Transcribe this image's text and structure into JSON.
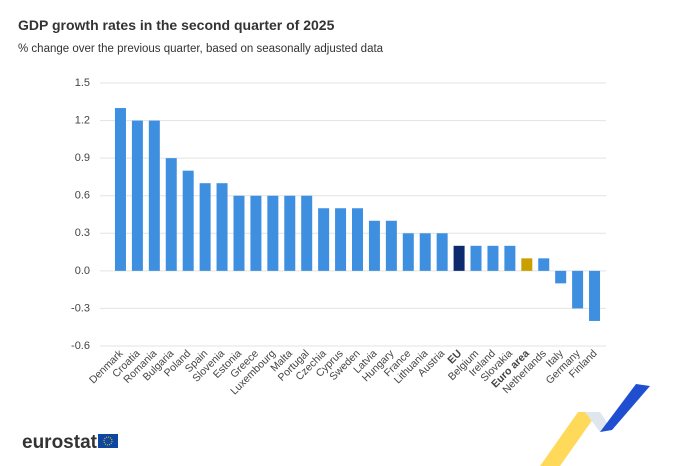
{
  "chart_data": {
    "type": "bar",
    "title": "GDP growth rates in the second quarter of 2025",
    "subtitle": "% change over the previous quarter, based on seasonally adjusted data",
    "categories": [
      "Denmark",
      "Croatia",
      "Romania",
      "Bulgaria",
      "Poland",
      "Spain",
      "Slovenia",
      "Estonia",
      "Greece",
      "Luxembourg",
      "Malta",
      "Portugal",
      "Czechia",
      "Cyprus",
      "Sweden",
      "Latvia",
      "Hungary",
      "France",
      "Lithuania",
      "Austria",
      "EU",
      "Belgium",
      "Ireland",
      "Slovakia",
      "Euro area",
      "Netherlands",
      "Italy",
      "Germany",
      "Finland"
    ],
    "values": [
      1.3,
      1.2,
      1.2,
      0.9,
      0.8,
      0.7,
      0.7,
      0.6,
      0.6,
      0.6,
      0.6,
      0.6,
      0.5,
      0.5,
      0.5,
      0.4,
      0.4,
      0.3,
      0.3,
      0.3,
      0.2,
      0.2,
      0.2,
      0.2,
      0.1,
      0.1,
      -0.1,
      -0.3,
      -0.4
    ],
    "color": "#3f8fe0",
    "colors": [
      "#3f8fe0",
      "#3f8fe0",
      "#3f8fe0",
      "#3f8fe0",
      "#3f8fe0",
      "#3f8fe0",
      "#3f8fe0",
      "#3f8fe0",
      "#3f8fe0",
      "#3f8fe0",
      "#3f8fe0",
      "#3f8fe0",
      "#3f8fe0",
      "#3f8fe0",
      "#3f8fe0",
      "#3f8fe0",
      "#3f8fe0",
      "#3f8fe0",
      "#3f8fe0",
      "#3f8fe0",
      "#0c2a6e",
      "#3f8fe0",
      "#3f8fe0",
      "#3f8fe0",
      "#c9a000",
      "#3f8fe0",
      "#3f8fe0",
      "#3f8fe0",
      "#3f8fe0"
    ],
    "ylim": [
      -0.6,
      1.5
    ],
    "yticks": [
      {
        "value": -0.6,
        "label": "-0.6"
      },
      {
        "value": -0.3,
        "label": "-0.3"
      },
      {
        "value": 0,
        "label": "0.0"
      },
      0.3,
      0.6,
      0.9,
      1.2,
      1.5
    ],
    "grid": true
  },
  "logo": "eurostat"
}
